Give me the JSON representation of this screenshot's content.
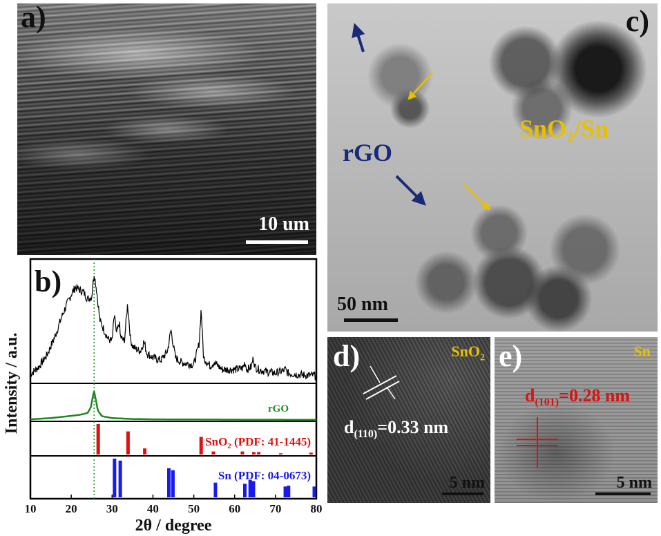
{
  "panel_a": {
    "label": "a)",
    "scale_bar": "10 um"
  },
  "panel_b": {
    "label": "b)"
  },
  "panel_c": {
    "label": "c)",
    "rgo_label": "rGO",
    "sno2_sn_label_main": "SnO",
    "sno2_sn_label_sub": "2",
    "sno2_sn_label_tail": "/Sn",
    "scale_bar": "50 nm",
    "colors": {
      "rgo": "#1a2a78",
      "sno2_sn": "#e8c000"
    }
  },
  "panel_d": {
    "label": "d)",
    "phase_main": "SnO",
    "phase_sub": "2",
    "spacing_prefix": "d",
    "spacing_sub": "(110)",
    "spacing_value": "=0.33 nm",
    "scale_bar": "5 nm"
  },
  "panel_e": {
    "label": "e)",
    "phase": "Sn",
    "spacing_prefix": "d",
    "spacing_sub": "(101)",
    "spacing_value": "=0.28 nm",
    "scale_bar": "5 nm",
    "colors": {
      "spacing": "#e01010"
    }
  },
  "chart_data": {
    "type": "line",
    "xlabel": "2θ / degree",
    "ylabel": "Intensity / a.u.",
    "xlim": [
      10,
      80
    ],
    "x_ticks": [
      10,
      20,
      30,
      40,
      50,
      60,
      70,
      80
    ],
    "reference_line_x": 25.6,
    "subplots": [
      {
        "name": "composite",
        "legend": "",
        "color": "#000000",
        "profile": {
          "x": [
            10,
            12,
            14,
            16,
            18,
            20,
            21,
            22,
            23,
            24,
            25,
            25.6,
            26.2,
            27,
            28,
            29,
            30,
            30.6,
            31,
            31.8,
            32,
            33,
            33.8,
            34.5,
            35,
            36,
            37,
            37.8,
            38.5,
            40,
            42,
            43.6,
            44.4,
            45.5,
            47,
            50,
            51.3,
            51.8,
            52.4,
            54,
            55,
            57,
            60,
            62,
            62.5,
            63,
            64,
            64.6,
            65,
            66,
            68,
            70,
            72,
            72.4,
            73,
            75,
            78,
            80
          ],
          "y": [
            0.06,
            0.12,
            0.22,
            0.38,
            0.58,
            0.74,
            0.8,
            0.78,
            0.76,
            0.7,
            0.72,
            0.92,
            0.78,
            0.52,
            0.44,
            0.36,
            0.34,
            0.58,
            0.4,
            0.5,
            0.38,
            0.34,
            0.66,
            0.36,
            0.3,
            0.27,
            0.26,
            0.34,
            0.24,
            0.2,
            0.18,
            0.26,
            0.44,
            0.2,
            0.16,
            0.14,
            0.32,
            0.62,
            0.2,
            0.13,
            0.16,
            0.1,
            0.1,
            0.11,
            0.16,
            0.1,
            0.12,
            0.2,
            0.12,
            0.1,
            0.08,
            0.07,
            0.09,
            0.1,
            0.07,
            0.06,
            0.05,
            0.05
          ]
        }
      },
      {
        "name": "rGO",
        "legend": "rGO",
        "color": "#1a8a1a",
        "profile": {
          "x": [
            10,
            15,
            18,
            20,
            22,
            24,
            24.8,
            25.3,
            25.6,
            25.9,
            26.5,
            27.5,
            30,
            35,
            40,
            50,
            60,
            70,
            80
          ],
          "y": [
            0.02,
            0.06,
            0.1,
            0.13,
            0.16,
            0.22,
            0.4,
            0.75,
            0.9,
            0.72,
            0.3,
            0.12,
            0.06,
            0.03,
            0.02,
            0.015,
            0.01,
            0.008,
            0.006
          ]
        }
      },
      {
        "name": "SnO2 reference",
        "legend_main": "SnO",
        "legend_sub": "2",
        "legend_tail": " (PDF: 41-1445)",
        "color": "#e01010",
        "sticks": {
          "x": [
            26.6,
            33.9,
            38.0,
            51.8,
            54.8,
            61.9,
            64.7,
            65.9,
            71.3,
            78.7
          ],
          "y": [
            1.0,
            0.76,
            0.2,
            0.58,
            0.1,
            0.1,
            0.08,
            0.08,
            0.04,
            0.06
          ]
        }
      },
      {
        "name": "Sn reference",
        "legend": "Sn (PDF: 04-0673)",
        "color": "#1a1aee",
        "sticks": {
          "x": [
            30.6,
            32.0,
            43.9,
            44.9,
            55.3,
            62.5,
            63.8,
            64.6,
            72.4,
            73.2,
            79.5
          ],
          "y": [
            1.0,
            0.95,
            0.75,
            0.7,
            0.38,
            0.35,
            0.45,
            0.42,
            0.28,
            0.3,
            0.28
          ]
        }
      }
    ]
  }
}
